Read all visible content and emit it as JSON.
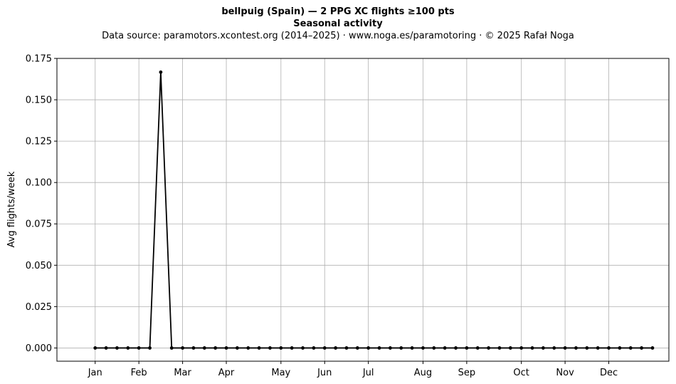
{
  "chart_data": {
    "type": "line",
    "title": "bellpuig (Spain)  —  2 PPG XC flights ≥100 pts",
    "subtitle": "Seasonal activity",
    "source_note": "Data source: paramotors.xcontest.org (2014–2025)  ·  www.noga.es/paramotoring  ·  © 2025 Rafał Noga",
    "xlabel": "",
    "ylabel": "Avg flights/week",
    "ylim": [
      -0.008,
      0.175
    ],
    "xlim": [
      -2.5,
      53.5
    ],
    "grid": true,
    "yticks": [
      "0.000",
      "0.025",
      "0.050",
      "0.075",
      "0.100",
      "0.125",
      "0.150",
      "0.175"
    ],
    "xticks": [
      {
        "label": "Jan",
        "week": 1
      },
      {
        "label": "Feb",
        "week": 5
      },
      {
        "label": "Mar",
        "week": 9
      },
      {
        "label": "Apr",
        "week": 13
      },
      {
        "label": "May",
        "week": 18
      },
      {
        "label": "Jun",
        "week": 22
      },
      {
        "label": "Jul",
        "week": 26
      },
      {
        "label": "Aug",
        "week": 31
      },
      {
        "label": "Sep",
        "week": 35
      },
      {
        "label": "Oct",
        "week": 40
      },
      {
        "label": "Nov",
        "week": 44
      },
      {
        "label": "Dec",
        "week": 48
      }
    ],
    "series": [
      {
        "color": "#000000",
        "x": [
          1,
          2,
          3,
          4,
          5,
          6,
          7,
          8,
          9,
          10,
          11,
          12,
          13,
          14,
          15,
          16,
          17,
          18,
          19,
          20,
          21,
          22,
          23,
          24,
          25,
          26,
          27,
          28,
          29,
          30,
          31,
          32,
          33,
          34,
          35,
          36,
          37,
          38,
          39,
          40,
          41,
          42,
          43,
          44,
          45,
          46,
          47,
          48,
          49,
          50,
          51,
          52
        ],
        "values": [
          0,
          0,
          0,
          0,
          0,
          0,
          0.1667,
          0,
          0,
          0,
          0,
          0,
          0,
          0,
          0,
          0,
          0,
          0,
          0,
          0,
          0,
          0,
          0,
          0,
          0,
          0,
          0,
          0,
          0,
          0,
          0,
          0,
          0,
          0,
          0,
          0,
          0,
          0,
          0,
          0,
          0,
          0,
          0,
          0,
          0,
          0,
          0,
          0,
          0,
          0,
          0,
          0
        ]
      }
    ]
  }
}
